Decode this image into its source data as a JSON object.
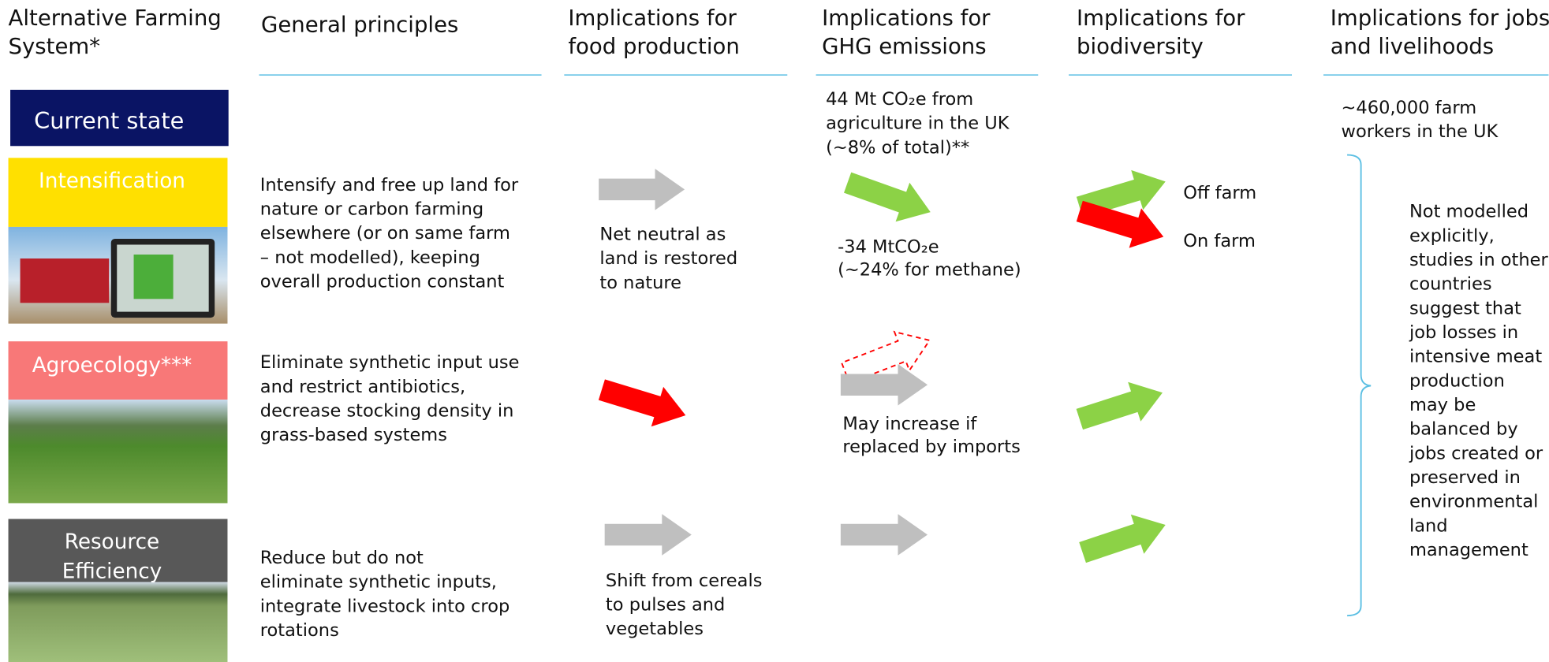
{
  "headers": [
    [
      "Alternative Farming",
      "System*"
    ],
    [
      "General principles"
    ],
    [
      "Implications for",
      "food production"
    ],
    [
      "Implications for",
      "GHG emissions"
    ],
    [
      "Implications for",
      "biodiversity"
    ],
    [
      "Implications for jobs",
      "and livelihoods"
    ]
  ],
  "current_state": {
    "label": "Current state",
    "ghg": [
      "44 Mt CO₂e from",
      "agriculture in the UK",
      "(~8% of total)**"
    ],
    "jobs": [
      "~460,000 farm",
      "workers in the UK"
    ]
  },
  "rows": [
    {
      "label": [
        "Intensification"
      ],
      "principles": [
        "Intensify and free up land for",
        "nature or carbon farming",
        "elsewhere (or on same farm",
        "– not modelled), keeping",
        "overall production constant"
      ],
      "food": [
        "Net neutral as",
        "land is restored",
        "to nature"
      ],
      "ghg": [
        "-34 MtCO₂e",
        "(~24% for methane)"
      ],
      "biodiversity": [
        "Off farm",
        "On farm"
      ]
    },
    {
      "label": [
        "Agroecology***"
      ],
      "principles": [
        "Eliminate synthetic input use",
        "and restrict antibiotics,",
        "decrease stocking density in",
        "grass-based systems"
      ],
      "ghg": [
        "May increase if",
        "replaced by imports"
      ]
    },
    {
      "label": [
        "Resource",
        "Efficiency"
      ],
      "principles": [
        "Reduce but do not",
        "eliminate synthetic inputs,",
        "integrate livestock into crop",
        "rotations"
      ],
      "food": [
        "Shift from cereals",
        "to pulses and",
        "vegetables"
      ]
    }
  ],
  "jobs_note": [
    "Not modelled",
    "explicitly,",
    "studies in other",
    "countries",
    "suggest that",
    "job losses in",
    "intensive meat",
    "production",
    "may be",
    "balanced by",
    "jobs created or",
    "preserved in",
    "environmental",
    "land",
    "management"
  ]
}
